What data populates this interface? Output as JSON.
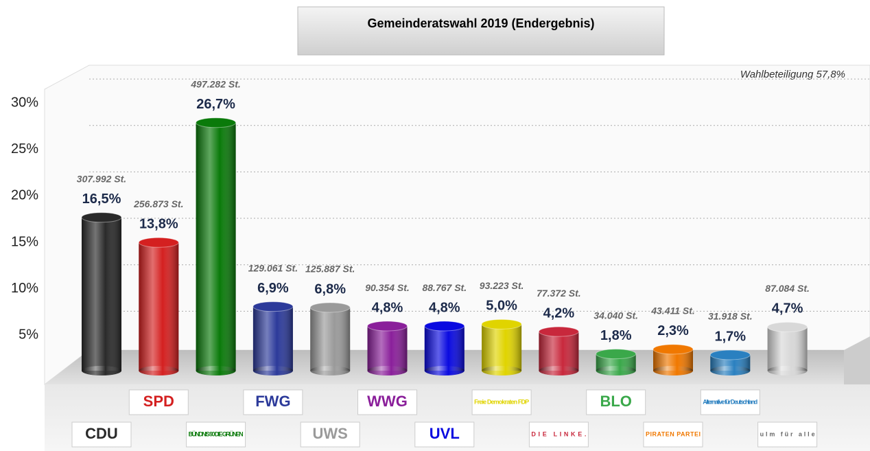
{
  "chart_data": {
    "type": "bar",
    "title": "Gemeinderatswahl 2019 (Endergebnis)",
    "annotation": "Wahlbeteiligung 57,8%",
    "categories": [
      "CDU",
      "SPD",
      "BÜNDNIS 90 DIE GRÜNEN",
      "FWG",
      "UWS",
      "WWG",
      "UVL",
      "Freie Demokraten FDP",
      "DIE LINKE.",
      "BLO",
      "PIRATEN PARTEI",
      "Alternative für Deutschland",
      "ulm für alle"
    ],
    "values": [
      16.5,
      13.8,
      26.7,
      6.9,
      6.8,
      4.8,
      4.8,
      5.0,
      4.2,
      1.8,
      2.3,
      1.7,
      4.7
    ],
    "value_labels": [
      "16,5%",
      "13,8%",
      "26,7%",
      "6,9%",
      "6,8%",
      "4,8%",
      "4,8%",
      "5,0%",
      "4,2%",
      "1,8%",
      "2,3%",
      "1,7%",
      "4,7%"
    ],
    "vote_labels": [
      "307.992 St.",
      "256.873 St.",
      "497.282 St.",
      "129.061 St.",
      "125.887 St.",
      "90.354 St.",
      "88.767 St.",
      "93.223 St.",
      "77.372 St.",
      "34.040 St.",
      "43.411 St.",
      "31.918 St.",
      "87.084 St."
    ],
    "colors": [
      "#2a2a2a",
      "#d42020",
      "#0a7a0a",
      "#2c3a9a",
      "#9a9a9a",
      "#8a1f9a",
      "#0a0ae0",
      "#e0d400",
      "#c8283c",
      "#3aa84a",
      "#f07800",
      "#2a80c0",
      "#d8d8d8"
    ],
    "ylim": [
      0,
      34
    ],
    "yticks": [
      {
        "value": 5,
        "label": "5%"
      },
      {
        "value": 10,
        "label": "10%"
      },
      {
        "value": 15,
        "label": "15%"
      },
      {
        "value": 20,
        "label": "20%"
      },
      {
        "value": 25,
        "label": "25%"
      },
      {
        "value": 30,
        "label": "30%"
      }
    ],
    "grid": true
  }
}
